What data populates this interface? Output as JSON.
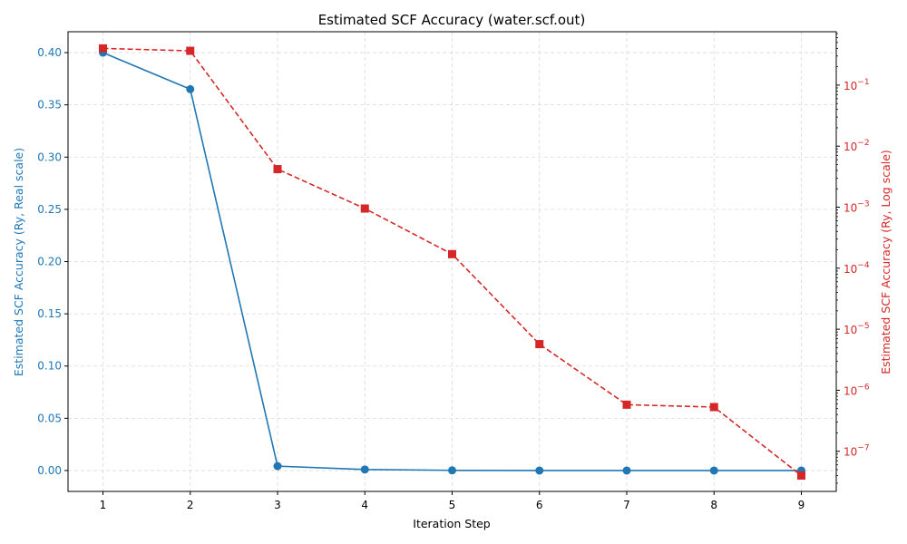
{
  "chart_data": {
    "type": "line",
    "title": "Estimated SCF Accuracy (water.scf.out)",
    "xlabel": "Iteration Step",
    "ylabel_left": "Estimated SCF Accuracy (Ry, Real scale)",
    "ylabel_right": "Estimated SCF Accuracy (Ry, Log scale)",
    "x": [
      1,
      2,
      3,
      4,
      5,
      6,
      7,
      8,
      9
    ],
    "x_ticks": [
      "1",
      "2",
      "3",
      "4",
      "5",
      "6",
      "7",
      "8",
      "9"
    ],
    "xlim": [
      0.6,
      9.4
    ],
    "left_axis": {
      "scale": "linear",
      "ylim": [
        -0.02,
        0.42
      ],
      "ticks": [
        0.0,
        0.05,
        0.1,
        0.15,
        0.2,
        0.25,
        0.3,
        0.35,
        0.4
      ],
      "tick_labels": [
        "0.00",
        "0.05",
        "0.10",
        "0.15",
        "0.20",
        "0.25",
        "0.30",
        "0.35",
        "0.40"
      ]
    },
    "right_axis": {
      "scale": "log",
      "ylim": [
        2.2e-08,
        0.75
      ],
      "major_exponents": [
        -7,
        -6,
        -5,
        -4,
        -3,
        -2,
        -1
      ]
    },
    "series": [
      {
        "axis": "left",
        "color": "#1f77b4",
        "linestyle": "solid",
        "marker": "circle",
        "values": [
          0.4,
          0.365,
          0.0042,
          0.00095,
          0.00017,
          5.7e-06,
          5.8e-07,
          5.3e-07,
          4e-08
        ]
      },
      {
        "axis": "right",
        "color": "#d62728",
        "linestyle": "dashed",
        "marker": "square",
        "values": [
          0.4,
          0.365,
          0.0042,
          0.00095,
          0.00017,
          5.7e-06,
          5.8e-07,
          5.3e-07,
          4e-08
        ]
      }
    ],
    "grid": true,
    "colors": {
      "left_axis": "#1f77b4",
      "right_axis": "#d62728",
      "grid": "#d9d9d9"
    }
  }
}
